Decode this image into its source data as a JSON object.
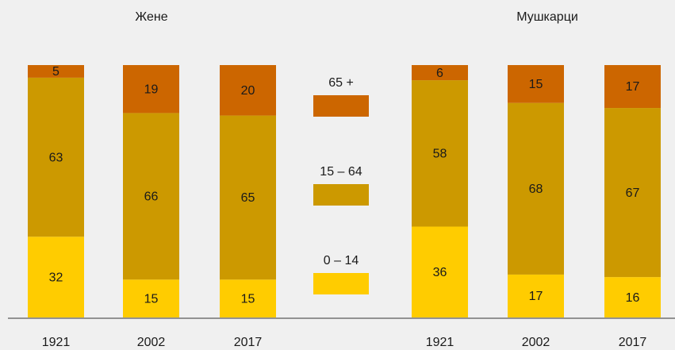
{
  "chart_data": [
    {
      "type": "bar",
      "stacked": true,
      "title": "Жене",
      "categories": [
        "1921",
        "2002",
        "2017"
      ],
      "ylim": [
        0,
        100
      ],
      "series": [
        {
          "name": "0 – 14",
          "color": "#ffcc00",
          "values": [
            32,
            15,
            15
          ]
        },
        {
          "name": "15 – 64",
          "color": "#cc9900",
          "values": [
            63,
            66,
            65
          ]
        },
        {
          "name": "65 +",
          "color": "#cc6600",
          "values": [
            5,
            19,
            20
          ]
        }
      ]
    },
    {
      "type": "bar",
      "stacked": true,
      "title": "Мушкарци",
      "categories": [
        "1921",
        "2002",
        "2017"
      ],
      "ylim": [
        0,
        100
      ],
      "series": [
        {
          "name": "0 – 14",
          "color": "#ffcc00",
          "values": [
            36,
            17,
            16
          ]
        },
        {
          "name": "15 – 64",
          "color": "#cc9900",
          "values": [
            58,
            68,
            67
          ]
        },
        {
          "name": "65 +",
          "color": "#cc6600",
          "values": [
            6,
            15,
            17
          ]
        }
      ]
    }
  ]
}
